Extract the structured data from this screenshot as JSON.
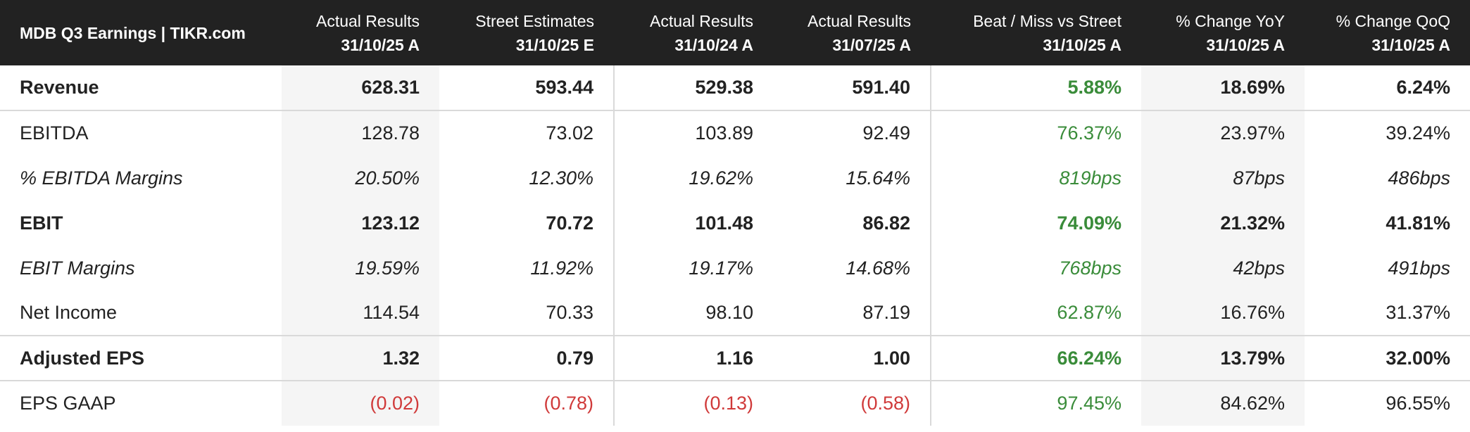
{
  "colors": {
    "header_bg": "#222222",
    "positive": "#3a8c3a",
    "negative": "#d03a3a",
    "shade": "#f5f5f5"
  },
  "chart_data": {
    "type": "table",
    "title": "MDB Q3 Earnings | TIKR.com",
    "columns": [
      {
        "label": "Actual Results",
        "date": "31/10/25 A"
      },
      {
        "label": "Street Estimates",
        "date": "31/10/25 E"
      },
      {
        "label": "Actual Results",
        "date": "31/10/24 A"
      },
      {
        "label": "Actual Results",
        "date": "31/07/25 A"
      },
      {
        "label": "Beat / Miss vs Street",
        "date": "31/10/25 A"
      },
      {
        "label": "% Change YoY",
        "date": "31/10/25 A"
      },
      {
        "label": "% Change QoQ",
        "date": "31/10/25 A"
      }
    ],
    "rows": [
      {
        "label": "Revenue",
        "values": [
          "628.31",
          "593.44",
          "529.38",
          "591.40",
          "5.88%",
          "18.69%",
          "6.24%"
        ]
      },
      {
        "label": "EBITDA",
        "values": [
          "128.78",
          "73.02",
          "103.89",
          "92.49",
          "76.37%",
          "23.97%",
          "39.24%"
        ]
      },
      {
        "label": "% EBITDA Margins",
        "values": [
          "20.50%",
          "12.30%",
          "19.62%",
          "15.64%",
          "819bps",
          "87bps",
          "486bps"
        ]
      },
      {
        "label": "EBIT",
        "values": [
          "123.12",
          "70.72",
          "101.48",
          "86.82",
          "74.09%",
          "21.32%",
          "41.81%"
        ]
      },
      {
        "label": "EBIT Margins",
        "values": [
          "19.59%",
          "11.92%",
          "19.17%",
          "14.68%",
          "768bps",
          "42bps",
          "491bps"
        ]
      },
      {
        "label": "Net Income",
        "values": [
          "114.54",
          "70.33",
          "98.10",
          "87.19",
          "62.87%",
          "16.76%",
          "31.37%"
        ]
      },
      {
        "label": "Adjusted EPS",
        "values": [
          "1.32",
          "0.79",
          "1.16",
          "1.00",
          "66.24%",
          "13.79%",
          "32.00%"
        ]
      },
      {
        "label": "EPS GAAP",
        "values": [
          "(0.02)",
          "(0.78)",
          "(0.13)",
          "(0.58)",
          "97.45%",
          "84.62%",
          "96.55%"
        ]
      }
    ]
  }
}
